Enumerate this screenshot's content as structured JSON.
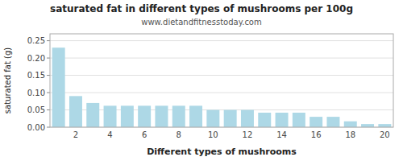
{
  "chart_data": {
    "type": "bar",
    "title": "saturated fat in different types of mushrooms per 100g",
    "subtitle": "www.dietandfitnesstoday.com",
    "xlabel": "Different types of mushrooms",
    "ylabel": "saturated fat (g)",
    "categories": [
      null,
      "2",
      null,
      "4",
      null,
      "6",
      null,
      "8",
      null,
      "10",
      null,
      "12",
      null,
      "14",
      null,
      "16",
      null,
      "18",
      null,
      "20"
    ],
    "values": [
      0.23,
      0.09,
      0.07,
      0.062,
      0.062,
      0.062,
      0.062,
      0.062,
      0.062,
      0.05,
      0.05,
      0.05,
      0.042,
      0.042,
      0.042,
      0.03,
      0.03,
      0.017,
      0.009,
      0.009
    ],
    "color": "#add8e6",
    "ylim": [
      0,
      0.27
    ],
    "yticks": [
      {
        "value": 0,
        "label": "0.00"
      },
      0.05,
      {
        "value": 0.1,
        "label": "0.10"
      },
      0.15,
      {
        "value": 0.2,
        "label": "0.20"
      },
      0.25
    ],
    "grid": true
  }
}
